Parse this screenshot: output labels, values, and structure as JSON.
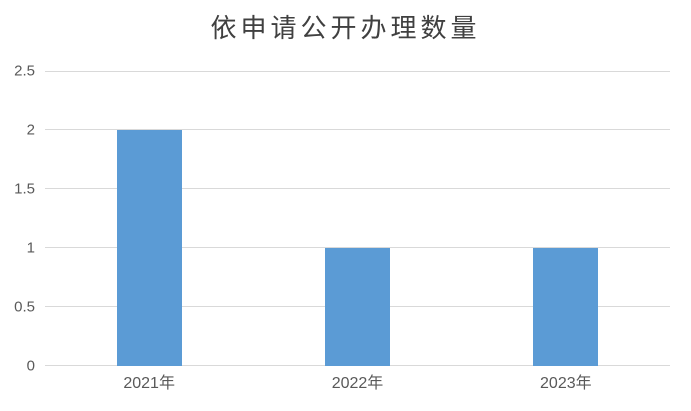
{
  "chart_data": {
    "type": "bar",
    "title": "依申请公开办理数量",
    "categories": [
      "2021年",
      "2022年",
      "2023年"
    ],
    "values": [
      2,
      1,
      1
    ],
    "series": [
      {
        "name": "依申请公开办理数量",
        "values": [
          2,
          1,
          1
        ]
      }
    ],
    "xlabel": "",
    "ylabel": "",
    "ylim": [
      0,
      2.5
    ],
    "yticks": [
      0,
      0.5,
      1,
      1.5,
      2,
      2.5
    ],
    "ytick_labels": [
      "0",
      "0.5",
      "1",
      "1.5",
      "2",
      "2.5"
    ],
    "grid": true,
    "legend_visible": false,
    "colors": {
      "bar": "#5B9BD5",
      "gridline": "#D9D9D9",
      "tick_label": "#595959",
      "title": "#404040",
      "background": "#FFFFFF"
    }
  }
}
